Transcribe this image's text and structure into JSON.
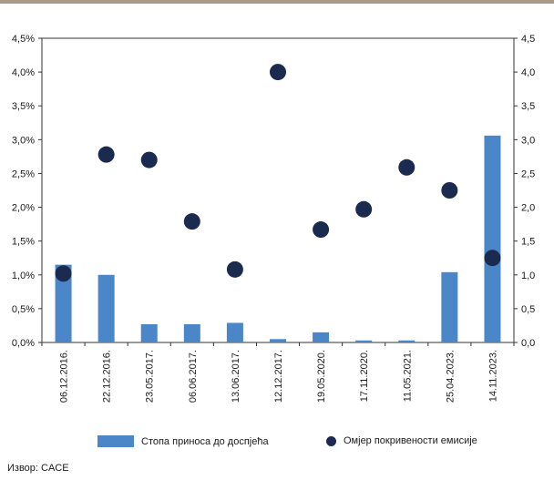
{
  "chart_data": {
    "type": "bar+scatter",
    "categories": [
      "06.12.2016.",
      "22.12.2016.",
      "23.05.2017.",
      "06.06.2017.",
      "13.06.2017.",
      "12.12.2017.",
      "19.05.2020.",
      "17.11.2020.",
      "11.05.2021.",
      "25.04.2023.",
      "14.11.2023."
    ],
    "series": [
      {
        "name": "Стопа приноса до доспјећа",
        "type": "bar",
        "axis": "left",
        "color": "#4a86c8",
        "values": [
          1.15,
          1.0,
          0.27,
          0.27,
          0.29,
          0.05,
          0.15,
          0.03,
          0.03,
          1.04,
          3.06
        ]
      },
      {
        "name": "Омјер покривености емисије",
        "type": "scatter",
        "axis": "right",
        "color": "#1b2a4f",
        "values": [
          1.02,
          2.78,
          2.7,
          1.79,
          1.08,
          4.0,
          1.67,
          1.97,
          2.59,
          2.25,
          1.25
        ]
      }
    ],
    "left_ticks": [
      "0,0%",
      "0,5%",
      "1,0%",
      "1,5%",
      "2,0%",
      "2,5%",
      "3,0%",
      "3,5%",
      "4,0%",
      "4,5%"
    ],
    "right_ticks": [
      "0,0",
      "0,5",
      "1,0",
      "1,5",
      "2,0",
      "2,5",
      "3,0",
      "3,5",
      "4,0",
      "4,5"
    ],
    "ylim": [
      0,
      4.5
    ],
    "grid": false,
    "legend_position": "bottom"
  },
  "source": "Извор: CACE"
}
